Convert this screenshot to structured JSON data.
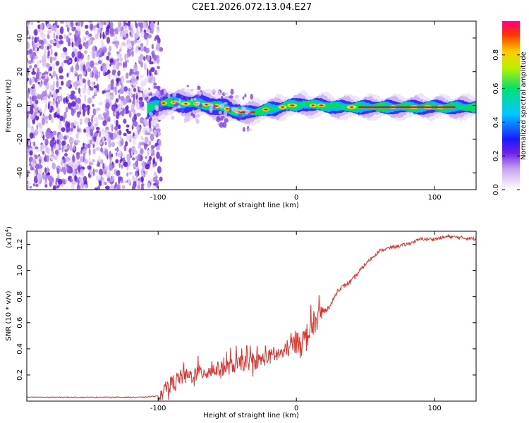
{
  "page_title": "C2E1.2026.072.13.04.E27",
  "chart_data": [
    {
      "type": "heatmap",
      "title": "C2E1.2026.072.13.04.E27",
      "xlabel": "Height of straight line (km)",
      "ylabel": "Frequency (Hz)",
      "xlim": [
        -195,
        130
      ],
      "ylim": [
        -50,
        50
      ],
      "x_ticks": [
        -100,
        0,
        100
      ],
      "x_tick_labels": [
        "-100",
        "0",
        "100"
      ],
      "y_ticks": [
        40,
        20,
        0,
        -20,
        -40
      ],
      "y_tick_labels": [
        "40",
        "20",
        "0",
        "-20",
        "-40"
      ],
      "noise_region_x": [
        -195,
        -100
      ],
      "ridge": {
        "x": [
          -108,
          -100,
          -90,
          -80,
          -70,
          -60,
          -50,
          -45,
          -40,
          -35,
          -30,
          -25,
          -20,
          -15,
          -10,
          -5,
          0,
          5,
          10,
          15,
          20,
          30,
          40,
          60,
          80,
          100,
          115,
          130
        ],
        "frequency_hz": [
          -2,
          1,
          2,
          1,
          1,
          0,
          -2,
          -3,
          -4,
          -4,
          -4,
          -3,
          -2,
          -2,
          -1,
          0,
          0,
          1,
          0,
          0,
          0,
          -1,
          -1,
          -1,
          -1,
          -1,
          -1,
          -1
        ]
      },
      "colorbar": {
        "label": "Normalized spectral amplitude",
        "range": [
          0,
          1
        ],
        "ticks": [
          0.0,
          0.2,
          0.4,
          0.6,
          0.8
        ],
        "tick_labels": [
          "0.0",
          "0.2",
          "0.4",
          "0.6",
          "0.8"
        ]
      }
    },
    {
      "type": "line",
      "xlabel": "Height of straight line (km)",
      "ylabel": "SNR (10 * v/v)",
      "y_scale_label_base": "(x10",
      "y_scale_label_exp": "4",
      "y_scale_label_close": ")",
      "xlim": [
        -195,
        130
      ],
      "ylim": [
        0,
        1.3
      ],
      "x_ticks": [
        -100,
        0,
        100
      ],
      "x_tick_labels": [
        "-100",
        "0",
        "100"
      ],
      "y_ticks": [
        0.2,
        0.4,
        0.6,
        0.8,
        1.0,
        1.2
      ],
      "y_tick_labels": [
        "0.2",
        "0.4",
        "0.6",
        "0.8",
        "1.0",
        "1.2"
      ],
      "series": [
        {
          "name": "SNR",
          "color": "#e8302a",
          "x": [
            -195,
            -150,
            -110,
            -100,
            -95,
            -90,
            -85,
            -80,
            -75,
            -70,
            -60,
            -50,
            -40,
            -30,
            -20,
            -10,
            0,
            5,
            10,
            12,
            15,
            20,
            25,
            30,
            40,
            50,
            60,
            70,
            80,
            90,
            100,
            110,
            120,
            130
          ],
          "values": [
            0.03,
            0.03,
            0.03,
            0.04,
            0.07,
            0.12,
            0.16,
            0.17,
            0.18,
            0.2,
            0.22,
            0.24,
            0.27,
            0.28,
            0.32,
            0.35,
            0.42,
            0.45,
            0.5,
            0.55,
            0.6,
            0.68,
            0.74,
            0.85,
            0.92,
            1.05,
            1.15,
            1.18,
            1.2,
            1.24,
            1.24,
            1.26,
            1.25,
            1.24
          ]
        }
      ]
    }
  ]
}
